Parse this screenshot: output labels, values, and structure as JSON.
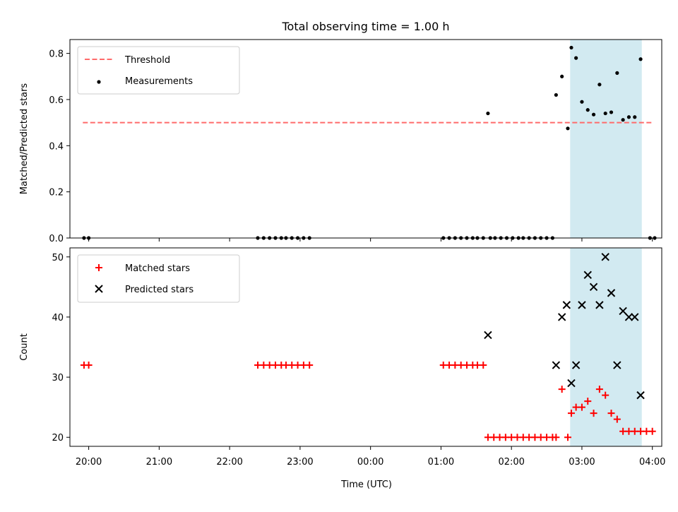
{
  "figure": {
    "title": "Total observing time = 1.00 h"
  },
  "chart_data": [
    {
      "type": "scatter",
      "ylabel": "Matched/Predicted stars",
      "xlabel": "",
      "ylim": [
        0.0,
        0.86
      ],
      "xlim": [
        "19:44",
        "04:08"
      ],
      "yticks": [
        "0.0",
        "0.2",
        "0.4",
        "0.6",
        "0.8"
      ],
      "xticks": [
        "20:00",
        "21:00",
        "22:00",
        "23:00",
        "00:00",
        "01:00",
        "02:00",
        "03:00",
        "04:00"
      ],
      "show_xticklabels": false,
      "grid": false,
      "legend": {
        "placement": "top-left",
        "entries": [
          "Threshold",
          "Measurements"
        ]
      },
      "threshold": {
        "name": "Threshold",
        "y": 0.5,
        "x_start": "19:55",
        "x_end": "04:00",
        "color": "#ff6b6b",
        "style": "dashed"
      },
      "highlight": {
        "x_start": "02:50",
        "x_end": "03:51",
        "color": "#add8e6"
      },
      "series": [
        {
          "name": "Measurements",
          "color": "#000000",
          "marker": "dot",
          "points": [
            [
              "19:56",
              0.0
            ],
            [
              "20:00",
              0.0
            ],
            [
              "22:24",
              0.0
            ],
            [
              "22:29",
              0.0
            ],
            [
              "22:34",
              0.0
            ],
            [
              "22:39",
              0.0
            ],
            [
              "22:44",
              0.0
            ],
            [
              "22:48",
              0.0
            ],
            [
              "22:53",
              0.0
            ],
            [
              "22:58",
              0.0
            ],
            [
              "23:03",
              0.0
            ],
            [
              "23:08",
              0.0
            ],
            [
              "01:02",
              0.0
            ],
            [
              "01:07",
              0.0
            ],
            [
              "01:12",
              0.0
            ],
            [
              "01:17",
              0.0
            ],
            [
              "01:22",
              0.0
            ],
            [
              "01:27",
              0.0
            ],
            [
              "01:31",
              0.0
            ],
            [
              "01:36",
              0.0
            ],
            [
              "01:40",
              0.54
            ],
            [
              "01:42",
              0.0
            ],
            [
              "01:46",
              0.0
            ],
            [
              "01:51",
              0.0
            ],
            [
              "01:56",
              0.0
            ],
            [
              "02:01",
              0.0
            ],
            [
              "02:06",
              0.0
            ],
            [
              "02:10",
              0.0
            ],
            [
              "02:15",
              0.0
            ],
            [
              "02:20",
              0.0
            ],
            [
              "02:25",
              0.0
            ],
            [
              "02:30",
              0.0
            ],
            [
              "02:35",
              0.0
            ],
            [
              "02:38",
              0.62
            ],
            [
              "02:43",
              0.7
            ],
            [
              "02:48",
              0.475
            ],
            [
              "02:51",
              0.825
            ],
            [
              "02:55",
              0.78
            ],
            [
              "03:00",
              0.59
            ],
            [
              "03:05",
              0.555
            ],
            [
              "03:10",
              0.535
            ],
            [
              "03:15",
              0.665
            ],
            [
              "03:20",
              0.54
            ],
            [
              "03:25",
              0.545
            ],
            [
              "03:30",
              0.715
            ],
            [
              "03:35",
              0.512
            ],
            [
              "03:40",
              0.524
            ],
            [
              "03:45",
              0.524
            ],
            [
              "03:50",
              0.775
            ],
            [
              "03:58",
              0.0
            ],
            [
              "04:02",
              0.0
            ]
          ]
        }
      ]
    },
    {
      "type": "scatter",
      "ylabel": "Count",
      "xlabel": "Time (UTC)",
      "ylim": [
        18.5,
        51.5
      ],
      "xlim": [
        "19:44",
        "04:08"
      ],
      "yticks": [
        "20",
        "30",
        "40",
        "50"
      ],
      "xticks": [
        "20:00",
        "21:00",
        "22:00",
        "23:00",
        "00:00",
        "01:00",
        "02:00",
        "03:00",
        "04:00"
      ],
      "show_xticklabels": true,
      "grid": false,
      "legend": {
        "placement": "top-left",
        "entries": [
          "Matched stars",
          "Predicted stars"
        ]
      },
      "highlight": {
        "x_start": "02:50",
        "x_end": "03:51",
        "color": "#add8e6"
      },
      "series": [
        {
          "name": "Matched stars",
          "color": "#ff0000",
          "marker": "plus",
          "points": [
            [
              "19:56",
              32
            ],
            [
              "20:00",
              32
            ],
            [
              "22:24",
              32
            ],
            [
              "22:29",
              32
            ],
            [
              "22:34",
              32
            ],
            [
              "22:39",
              32
            ],
            [
              "22:44",
              32
            ],
            [
              "22:48",
              32
            ],
            [
              "22:53",
              32
            ],
            [
              "22:58",
              32
            ],
            [
              "23:03",
              32
            ],
            [
              "23:08",
              32
            ],
            [
              "01:02",
              32
            ],
            [
              "01:07",
              32
            ],
            [
              "01:12",
              32
            ],
            [
              "01:17",
              32
            ],
            [
              "01:22",
              32
            ],
            [
              "01:27",
              32
            ],
            [
              "01:31",
              32
            ],
            [
              "01:36",
              32
            ],
            [
              "01:40",
              20
            ],
            [
              "01:45",
              20
            ],
            [
              "01:50",
              20
            ],
            [
              "01:55",
              20
            ],
            [
              "02:00",
              20
            ],
            [
              "02:05",
              20
            ],
            [
              "02:10",
              20
            ],
            [
              "02:15",
              20
            ],
            [
              "02:20",
              20
            ],
            [
              "02:25",
              20
            ],
            [
              "02:30",
              20
            ],
            [
              "02:35",
              20
            ],
            [
              "02:38",
              20
            ],
            [
              "02:43",
              28
            ],
            [
              "02:48",
              20
            ],
            [
              "02:51",
              24
            ],
            [
              "02:55",
              25
            ],
            [
              "03:00",
              25
            ],
            [
              "03:05",
              26
            ],
            [
              "03:10",
              24
            ],
            [
              "03:15",
              28
            ],
            [
              "03:20",
              27
            ],
            [
              "03:25",
              24
            ],
            [
              "03:30",
              23
            ],
            [
              "03:35",
              21
            ],
            [
              "03:40",
              21
            ],
            [
              "03:45",
              21
            ],
            [
              "03:50",
              21
            ],
            [
              "03:55",
              21
            ],
            [
              "04:00",
              21
            ]
          ]
        },
        {
          "name": "Predicted stars",
          "color": "#000000",
          "marker": "x",
          "points": [
            [
              "01:40",
              37
            ],
            [
              "02:38",
              32
            ],
            [
              "02:43",
              40
            ],
            [
              "02:47",
              42
            ],
            [
              "02:51",
              29
            ],
            [
              "02:55",
              32
            ],
            [
              "03:00",
              42
            ],
            [
              "03:05",
              47
            ],
            [
              "03:10",
              45
            ],
            [
              "03:15",
              42
            ],
            [
              "03:20",
              50
            ],
            [
              "03:25",
              44
            ],
            [
              "03:30",
              32
            ],
            [
              "03:35",
              41
            ],
            [
              "03:40",
              40
            ],
            [
              "03:45",
              40
            ],
            [
              "03:50",
              27
            ]
          ]
        }
      ]
    }
  ]
}
